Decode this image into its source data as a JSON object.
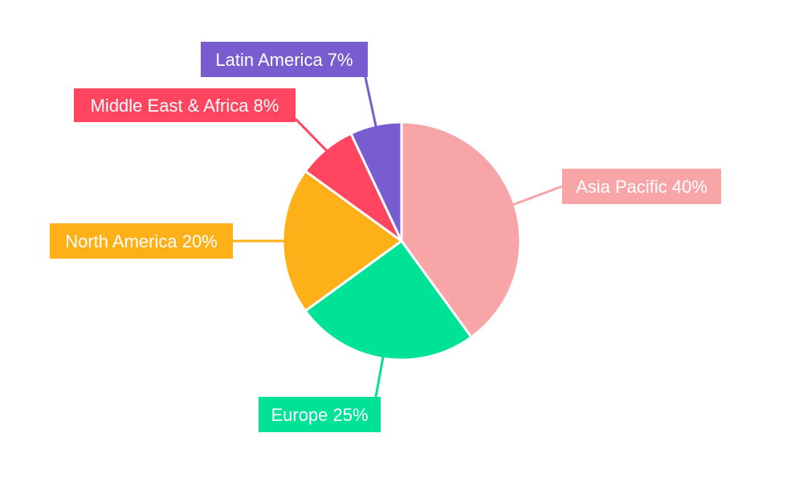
{
  "chart_data": {
    "type": "pie",
    "title": "",
    "slices": [
      {
        "label": "Asia Pacific",
        "value": 40,
        "display": "Asia Pacific 40%",
        "color": "#F8A5A8"
      },
      {
        "label": "Europe",
        "value": 25,
        "display": "Europe 25%",
        "color": "#00E396"
      },
      {
        "label": "North America",
        "value": 20,
        "display": "North America 20%",
        "color": "#FEB019"
      },
      {
        "label": "Middle East & Africa",
        "value": 8,
        "display": "Middle East & Africa 8%",
        "color": "#FF4560"
      },
      {
        "label": "Latin America",
        "value": 7,
        "display": "Latin America 7%",
        "color": "#775DD0"
      }
    ],
    "start_angle": "12 o'clock",
    "direction": "clockwise",
    "legend": "none",
    "labels": "outside-with-leader-lines"
  }
}
